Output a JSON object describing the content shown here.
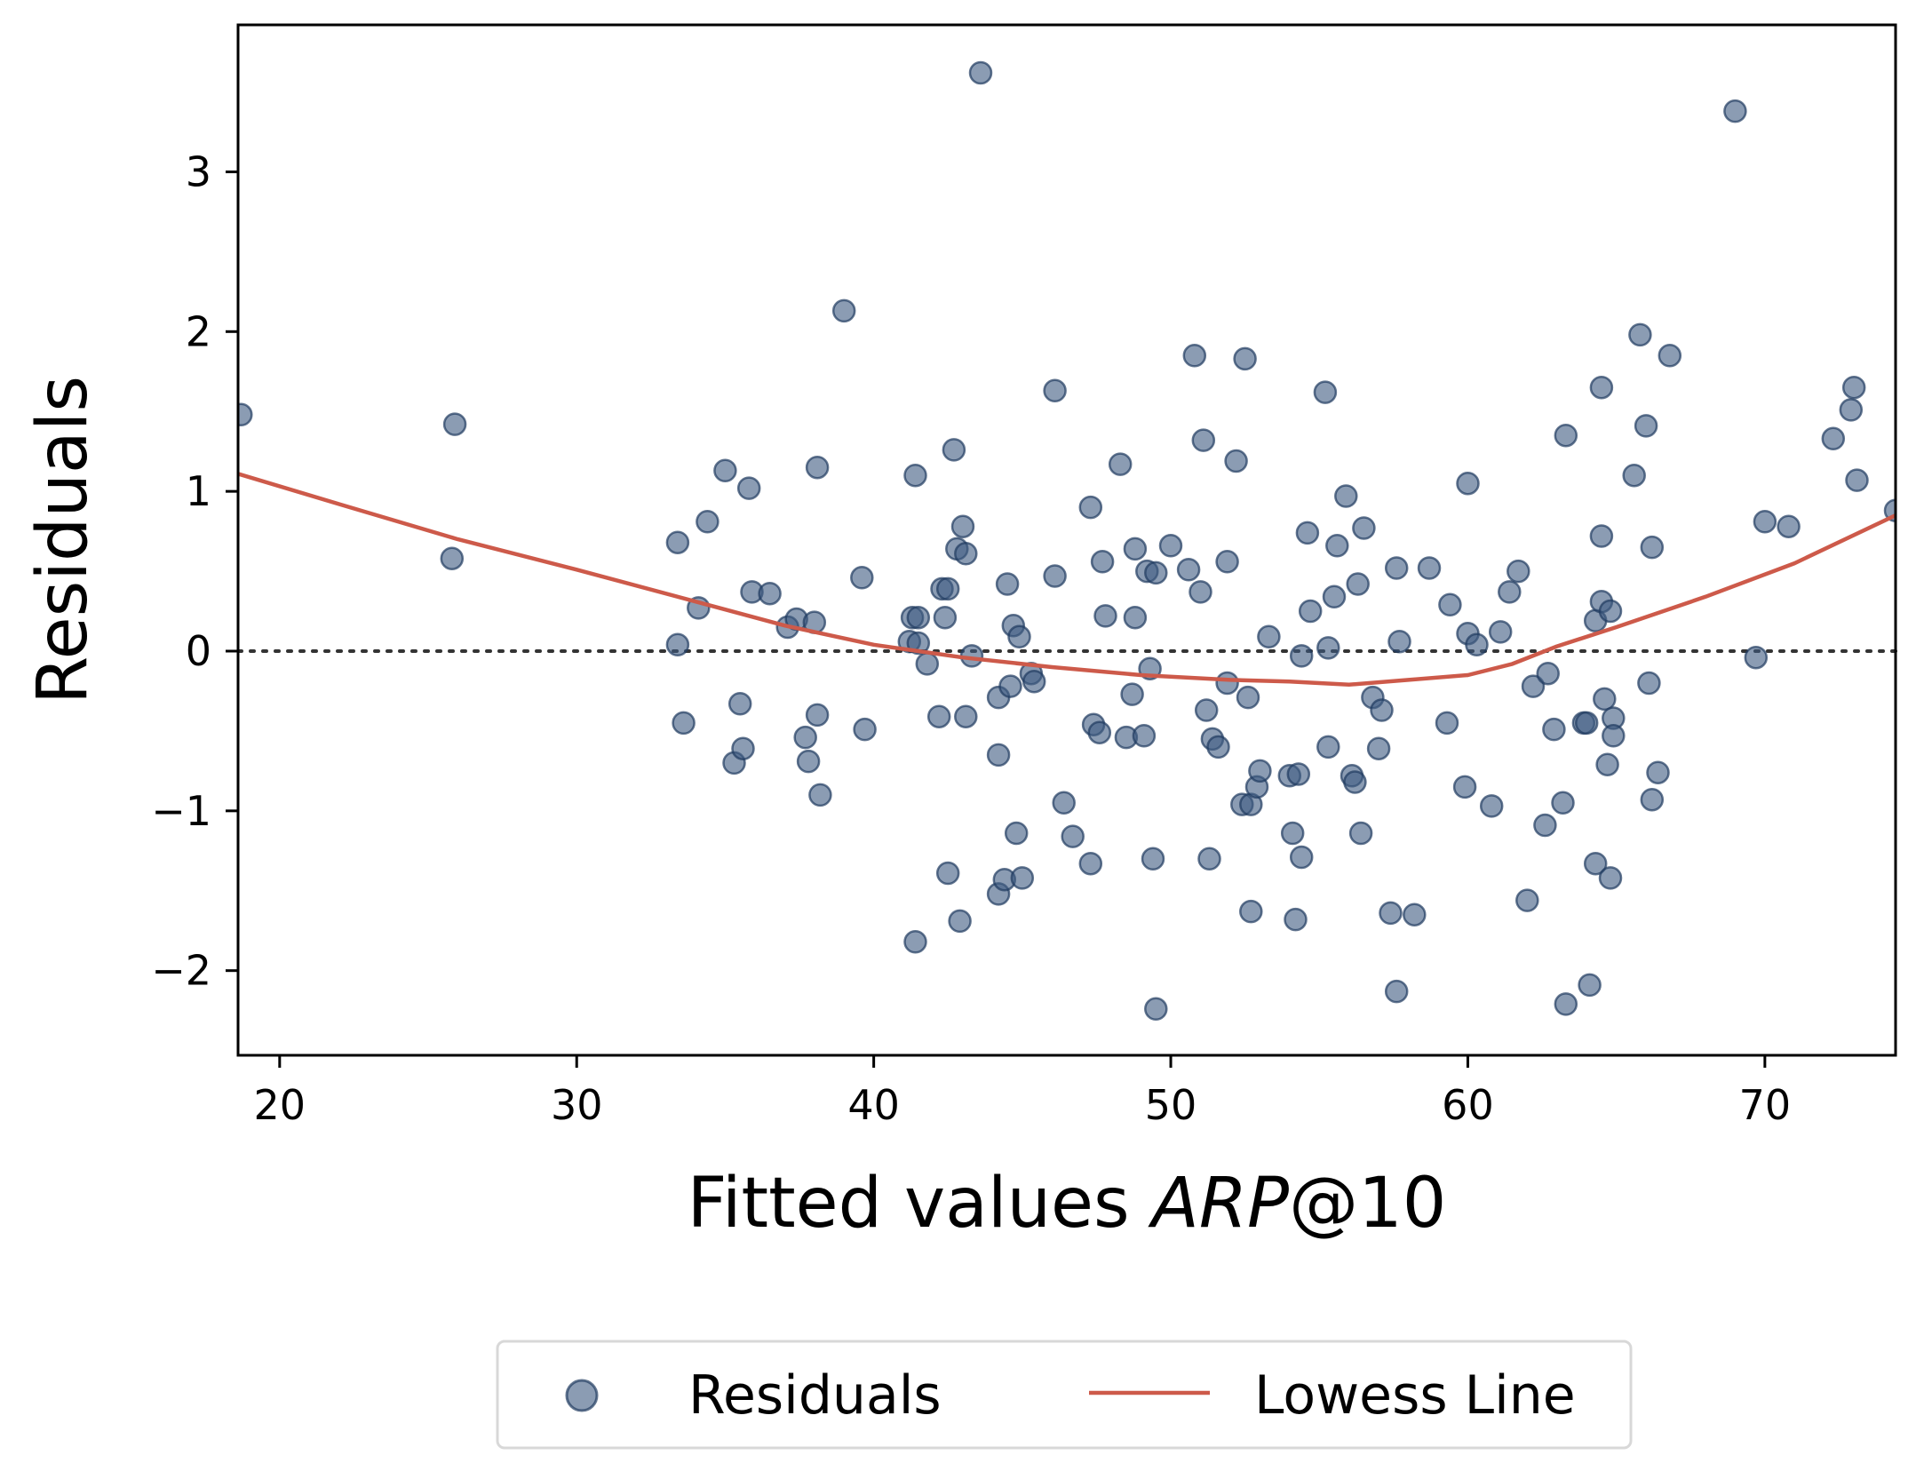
{
  "chart_data": {
    "type": "scatter",
    "xlabel_prefix": "Fitted values ",
    "xlabel_italic": "ARP",
    "xlabel_suffix": "@10",
    "ylabel": "Residuals",
    "xlim": [
      18.6,
      74.4
    ],
    "ylim": [
      -2.53,
      3.92
    ],
    "xticks": [
      20,
      30,
      40,
      50,
      60,
      70
    ],
    "yticks": [
      -2,
      -1,
      0,
      1,
      2,
      3
    ],
    "ytick_labels": [
      "−2",
      "−1",
      "0",
      "1",
      "2",
      "3"
    ],
    "reference_line": 0,
    "legend": {
      "placement": "below",
      "items": [
        "Residuals",
        "Lowess Line"
      ]
    },
    "colors": {
      "points": "#3d5a80",
      "points_edge": "#1f3b60",
      "lowess": "#cd5a4a",
      "reference": "#333333"
    },
    "series": [
      {
        "name": "Residuals",
        "type": "scatter",
        "points": [
          [
            18.7,
            1.48
          ],
          [
            25.8,
            0.58
          ],
          [
            25.9,
            1.42
          ],
          [
            33.4,
            0.68
          ],
          [
            33.4,
            0.04
          ],
          [
            33.6,
            -0.45
          ],
          [
            34.1,
            0.27
          ],
          [
            34.4,
            0.81
          ],
          [
            35.0,
            1.13
          ],
          [
            35.3,
            -0.7
          ],
          [
            35.5,
            -0.33
          ],
          [
            35.6,
            -0.61
          ],
          [
            35.8,
            1.02
          ],
          [
            35.9,
            0.37
          ],
          [
            36.5,
            0.36
          ],
          [
            37.1,
            0.15
          ],
          [
            37.4,
            0.2
          ],
          [
            37.7,
            -0.54
          ],
          [
            37.8,
            -0.69
          ],
          [
            38.0,
            0.18
          ],
          [
            38.1,
            1.15
          ],
          [
            38.1,
            -0.4
          ],
          [
            38.2,
            -0.9
          ],
          [
            39.0,
            2.13
          ],
          [
            39.6,
            0.46
          ],
          [
            39.7,
            -0.49
          ],
          [
            41.2,
            0.06
          ],
          [
            41.3,
            0.21
          ],
          [
            41.4,
            1.1
          ],
          [
            41.4,
            -1.82
          ],
          [
            41.5,
            0.05
          ],
          [
            41.5,
            0.21
          ],
          [
            41.8,
            -0.08
          ],
          [
            42.2,
            -0.41
          ],
          [
            42.3,
            0.39
          ],
          [
            42.4,
            0.21
          ],
          [
            42.5,
            -1.39
          ],
          [
            42.5,
            0.39
          ],
          [
            42.7,
            1.26
          ],
          [
            42.8,
            0.64
          ],
          [
            42.9,
            -1.69
          ],
          [
            43.0,
            0.78
          ],
          [
            43.1,
            -0.41
          ],
          [
            43.1,
            0.61
          ],
          [
            43.3,
            -0.03
          ],
          [
            43.6,
            3.62
          ],
          [
            44.2,
            -1.52
          ],
          [
            44.2,
            -0.65
          ],
          [
            44.2,
            -0.29
          ],
          [
            44.4,
            -1.43
          ],
          [
            44.5,
            0.42
          ],
          [
            44.6,
            -0.22
          ],
          [
            44.7,
            0.16
          ],
          [
            44.8,
            -1.14
          ],
          [
            44.9,
            0.09
          ],
          [
            45.0,
            -1.42
          ],
          [
            45.3,
            -0.14
          ],
          [
            45.4,
            -0.19
          ],
          [
            46.1,
            1.63
          ],
          [
            46.1,
            0.47
          ],
          [
            46.4,
            -0.95
          ],
          [
            46.7,
            -1.16
          ],
          [
            47.3,
            0.9
          ],
          [
            47.3,
            -1.33
          ],
          [
            47.4,
            -0.46
          ],
          [
            47.6,
            -0.51
          ],
          [
            47.7,
            0.56
          ],
          [
            47.8,
            0.22
          ],
          [
            48.3,
            1.17
          ],
          [
            48.5,
            -0.54
          ],
          [
            48.7,
            -0.27
          ],
          [
            48.8,
            0.21
          ],
          [
            48.8,
            0.64
          ],
          [
            49.1,
            -0.53
          ],
          [
            49.2,
            0.5
          ],
          [
            49.3,
            -0.11
          ],
          [
            49.4,
            -1.3
          ],
          [
            49.5,
            -2.24
          ],
          [
            49.5,
            0.49
          ],
          [
            50.0,
            0.66
          ],
          [
            50.6,
            0.51
          ],
          [
            50.8,
            1.85
          ],
          [
            51.0,
            0.37
          ],
          [
            51.1,
            1.32
          ],
          [
            51.2,
            -0.37
          ],
          [
            51.3,
            -1.3
          ],
          [
            51.4,
            -0.55
          ],
          [
            51.6,
            -0.6
          ],
          [
            51.9,
            -0.2
          ],
          [
            51.9,
            0.56
          ],
          [
            52.2,
            1.19
          ],
          [
            52.4,
            -0.96
          ],
          [
            52.5,
            1.83
          ],
          [
            52.6,
            -0.29
          ],
          [
            52.7,
            -1.63
          ],
          [
            52.7,
            -0.96
          ],
          [
            52.9,
            -0.85
          ],
          [
            53.0,
            -0.75
          ],
          [
            53.3,
            0.09
          ],
          [
            54.0,
            -0.78
          ],
          [
            54.1,
            -1.14
          ],
          [
            54.2,
            -1.68
          ],
          [
            54.3,
            -0.77
          ],
          [
            54.4,
            -1.29
          ],
          [
            54.4,
            -0.03
          ],
          [
            54.6,
            0.74
          ],
          [
            54.7,
            0.25
          ],
          [
            55.2,
            1.62
          ],
          [
            55.3,
            -0.6
          ],
          [
            55.3,
            0.02
          ],
          [
            55.5,
            0.34
          ],
          [
            55.6,
            0.66
          ],
          [
            55.9,
            0.97
          ],
          [
            56.1,
            -0.78
          ],
          [
            56.2,
            -0.82
          ],
          [
            56.3,
            0.42
          ],
          [
            56.4,
            -1.14
          ],
          [
            56.5,
            0.77
          ],
          [
            56.8,
            -0.29
          ],
          [
            57.0,
            -0.61
          ],
          [
            57.1,
            -0.37
          ],
          [
            57.4,
            -1.64
          ],
          [
            57.6,
            0.52
          ],
          [
            57.6,
            -2.13
          ],
          [
            57.7,
            0.06
          ],
          [
            58.2,
            -1.65
          ],
          [
            58.7,
            0.52
          ],
          [
            59.3,
            -0.45
          ],
          [
            59.4,
            0.29
          ],
          [
            59.9,
            -0.85
          ],
          [
            60.0,
            1.05
          ],
          [
            60.0,
            0.11
          ],
          [
            60.3,
            0.04
          ],
          [
            60.8,
            -0.97
          ],
          [
            61.1,
            0.12
          ],
          [
            61.4,
            0.37
          ],
          [
            61.7,
            0.5
          ],
          [
            62.0,
            -1.56
          ],
          [
            62.2,
            -0.22
          ],
          [
            62.6,
            -1.09
          ],
          [
            62.7,
            -0.14
          ],
          [
            62.9,
            -0.49
          ],
          [
            63.2,
            -0.95
          ],
          [
            63.3,
            1.35
          ],
          [
            63.3,
            -2.21
          ],
          [
            63.9,
            -0.45
          ],
          [
            64.0,
            -0.45
          ],
          [
            64.1,
            -2.09
          ],
          [
            64.3,
            -1.33
          ],
          [
            64.3,
            0.19
          ],
          [
            64.5,
            0.72
          ],
          [
            64.5,
            0.31
          ],
          [
            64.5,
            1.65
          ],
          [
            64.6,
            -0.3
          ],
          [
            64.7,
            -0.71
          ],
          [
            64.8,
            -1.42
          ],
          [
            64.8,
            0.25
          ],
          [
            64.9,
            -0.42
          ],
          [
            64.9,
            -0.53
          ],
          [
            65.6,
            1.1
          ],
          [
            65.8,
            1.98
          ],
          [
            66.0,
            1.41
          ],
          [
            66.1,
            -0.2
          ],
          [
            66.2,
            -0.93
          ],
          [
            66.2,
            0.65
          ],
          [
            66.4,
            -0.76
          ],
          [
            66.8,
            1.85
          ],
          [
            69.0,
            3.38
          ],
          [
            69.7,
            -0.04
          ],
          [
            70.0,
            0.81
          ],
          [
            70.8,
            0.78
          ],
          [
            72.3,
            1.33
          ],
          [
            72.9,
            1.51
          ],
          [
            73.0,
            1.65
          ],
          [
            73.1,
            1.07
          ],
          [
            74.4,
            0.88
          ]
        ]
      },
      {
        "name": "Lowess Line",
        "type": "line",
        "points": [
          [
            18.6,
            1.11
          ],
          [
            22.0,
            0.92
          ],
          [
            26.0,
            0.7
          ],
          [
            30.0,
            0.51
          ],
          [
            34.0,
            0.31
          ],
          [
            37.0,
            0.16
          ],
          [
            40.0,
            0.04
          ],
          [
            43.0,
            -0.04
          ],
          [
            46.0,
            -0.1
          ],
          [
            49.0,
            -0.15
          ],
          [
            52.0,
            -0.18
          ],
          [
            54.0,
            -0.19
          ],
          [
            56.0,
            -0.21
          ],
          [
            58.0,
            -0.18
          ],
          [
            60.0,
            -0.15
          ],
          [
            61.5,
            -0.08
          ],
          [
            63.0,
            0.03
          ],
          [
            65.0,
            0.15
          ],
          [
            68.0,
            0.34
          ],
          [
            71.0,
            0.55
          ],
          [
            74.4,
            0.85
          ]
        ]
      }
    ]
  }
}
